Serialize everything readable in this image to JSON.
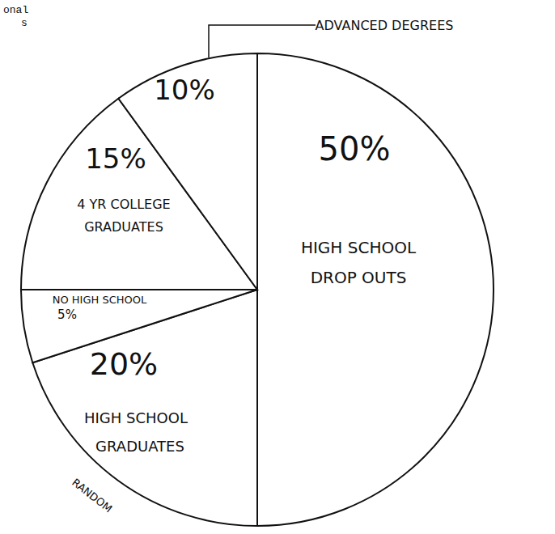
{
  "chart_data": {
    "type": "pie",
    "categories": [
      "HIGH SCHOOL DROP OUTS",
      "HIGH SCHOOL GRADUATES",
      "NO HIGH SCHOOL",
      "4 YR COLLEGE GRADUATES",
      "ADVANCED DEGREES"
    ],
    "values": [
      50,
      20,
      5,
      15,
      10
    ],
    "value_labels": [
      "50%",
      "20%",
      "5%",
      "15%",
      "10%"
    ],
    "colors": [
      "#ffffff",
      "#ffffff",
      "#ffffff",
      "#ffffff",
      "#ffffff"
    ],
    "data_labels": true,
    "annotations": [
      "RANDOM",
      "onal",
      "s"
    ]
  }
}
